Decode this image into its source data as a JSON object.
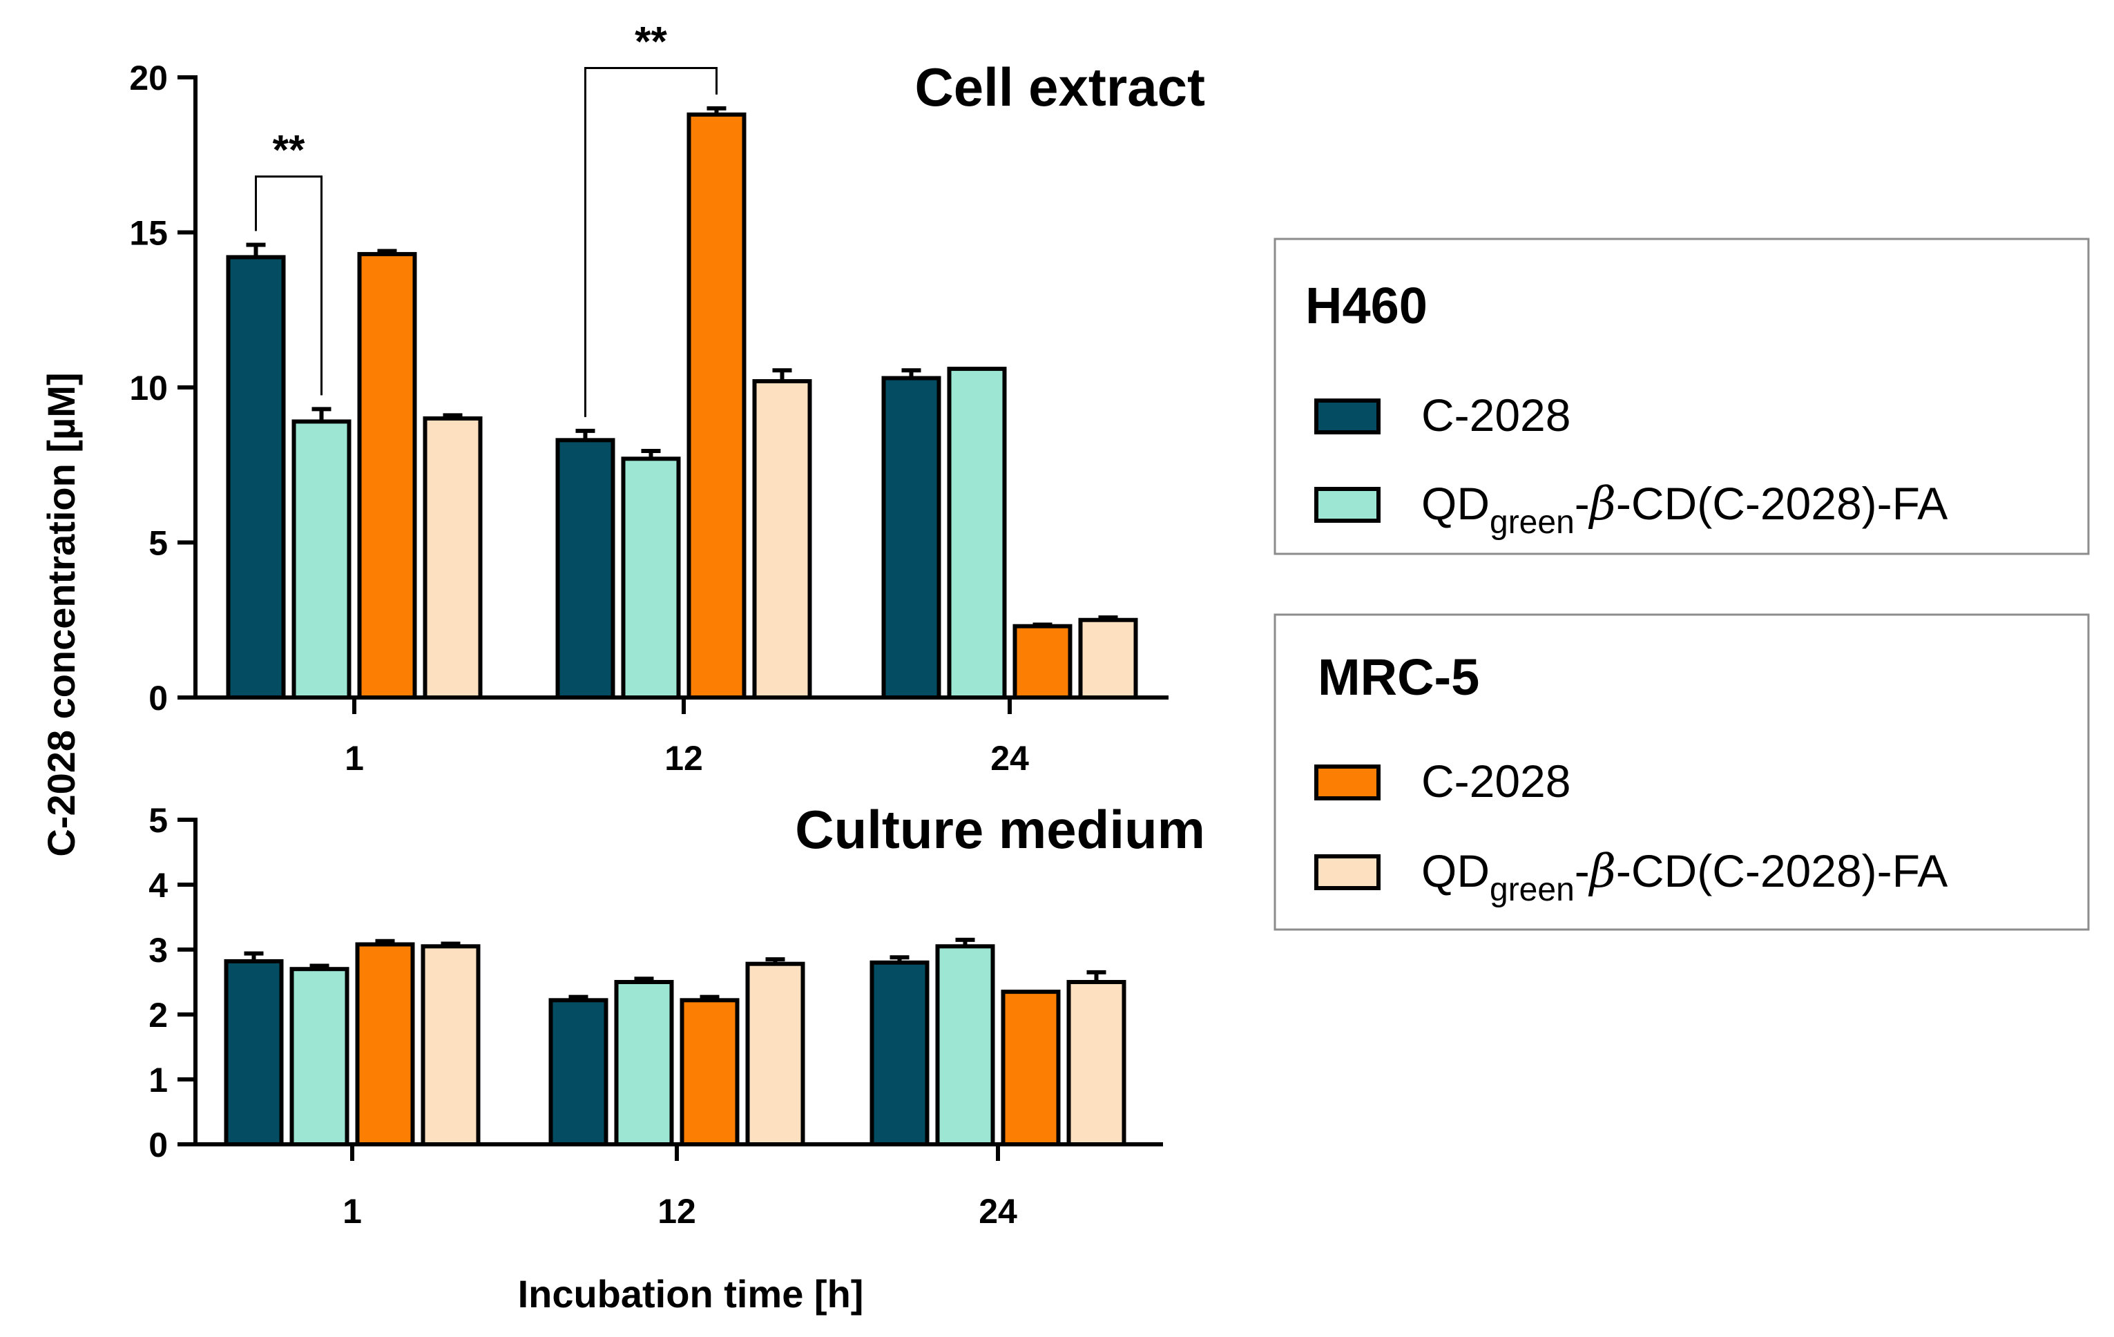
{
  "chart_data": {
    "type": "bar",
    "ylabel_prefix": "C-2028 concentration [",
    "ylabel_unit": "µM",
    "ylabel_suffix": "]",
    "xlabel": "Incubation time [h]",
    "colors": {
      "h460_c2028": "#044c61",
      "h460_qd": "#9de6d4",
      "mrc5_c2028": "#fc7e03",
      "mrc5_qd": "#fde0c0"
    },
    "series": [
      {
        "key": "h460_c2028",
        "name": "C-2028",
        "cell_line": "H460"
      },
      {
        "key": "h460_qd",
        "name": "QDgreen-β-CD(C-2028)-FA",
        "cell_line": "H460"
      },
      {
        "key": "mrc5_c2028",
        "name": "C-2028",
        "cell_line": "MRC-5"
      },
      {
        "key": "mrc5_qd",
        "name": "QDgreen-β-CD(C-2028)-FA",
        "cell_line": "MRC-5"
      }
    ],
    "panels": [
      {
        "id": "cell",
        "title": "Cell extract",
        "categories": [
          "1",
          "12",
          "24"
        ],
        "ylim": [
          0,
          20
        ],
        "yticks": [
          "0",
          "5",
          "10",
          "15",
          "20"
        ],
        "values": {
          "h460_c2028": [
            14.2,
            8.3,
            10.3
          ],
          "h460_qd": [
            8.9,
            7.7,
            10.6
          ],
          "mrc5_c2028": [
            14.3,
            18.8,
            2.3
          ],
          "mrc5_qd": [
            9.0,
            10.2,
            2.5
          ]
        },
        "errors": {
          "h460_c2028": [
            0.4,
            0.3,
            0.25
          ],
          "h460_qd": [
            0.4,
            0.25,
            0.0
          ],
          "mrc5_c2028": [
            0.1,
            0.2,
            0.05
          ],
          "mrc5_qd": [
            0.1,
            0.35,
            0.08
          ]
        },
        "significance": [
          {
            "label": "**",
            "category": 0,
            "from": "h460_c2028",
            "to": "h460_qd",
            "level": 16.8
          },
          {
            "label": "**",
            "category": 1,
            "from": "h460_c2028",
            "to": "mrc5_c2028",
            "level": 20.3
          }
        ]
      },
      {
        "id": "medium",
        "title": "Culture medium",
        "categories": [
          "1",
          "12",
          "24"
        ],
        "ylim": [
          0,
          5
        ],
        "yticks": [
          "0",
          "1",
          "2",
          "3",
          "4",
          "5"
        ],
        "values": {
          "h460_c2028": [
            2.82,
            2.22,
            2.8
          ],
          "h460_qd": [
            2.7,
            2.5,
            3.05
          ],
          "mrc5_c2028": [
            3.08,
            2.22,
            2.35
          ],
          "mrc5_qd": [
            3.05,
            2.78,
            2.5
          ]
        },
        "errors": {
          "h460_c2028": [
            0.12,
            0.05,
            0.08
          ],
          "h460_qd": [
            0.05,
            0.05,
            0.1
          ],
          "mrc5_c2028": [
            0.05,
            0.05,
            0.0
          ],
          "mrc5_qd": [
            0.04,
            0.07,
            0.15
          ]
        },
        "significance": []
      }
    ]
  },
  "legend": {
    "groups": [
      {
        "title": "H460",
        "items": [
          {
            "key": "h460_c2028",
            "label": "C-2028"
          },
          {
            "key": "h460_qd",
            "label_main": "QD",
            "label_sub": "green",
            "label_dash": "-",
            "label_beta": "β",
            "label_rest": "-CD(C-2028)-FA"
          }
        ]
      },
      {
        "title": "MRC-5",
        "items": [
          {
            "key": "mrc5_c2028",
            "label": "C-2028"
          },
          {
            "key": "mrc5_qd",
            "label_main": "QD",
            "label_sub": "green",
            "label_dash": "-",
            "label_beta": "β",
            "label_rest": "-CD(C-2028)-FA"
          }
        ]
      }
    ]
  }
}
